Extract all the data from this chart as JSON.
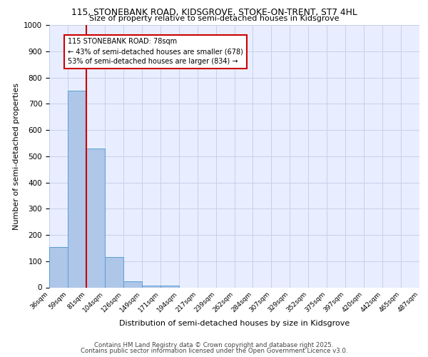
{
  "title1": "115, STONEBANK ROAD, KIDSGROVE, STOKE-ON-TRENT, ST7 4HL",
  "title2": "Size of property relative to semi-detached houses in Kidsgrove",
  "xlabel": "Distribution of semi-detached houses by size in Kidsgrove",
  "ylabel": "Number of semi-detached properties",
  "bins": [
    "36sqm",
    "59sqm",
    "81sqm",
    "104sqm",
    "126sqm",
    "149sqm",
    "171sqm",
    "194sqm",
    "217sqm",
    "239sqm",
    "262sqm",
    "284sqm",
    "307sqm",
    "329sqm",
    "352sqm",
    "375sqm",
    "397sqm",
    "420sqm",
    "442sqm",
    "465sqm",
    "487sqm"
  ],
  "values": [
    155,
    750,
    530,
    115,
    22,
    8,
    6,
    0,
    0,
    0,
    0,
    0,
    0,
    0,
    0,
    0,
    0,
    0,
    0,
    0
  ],
  "bar_color": "#aec6e8",
  "bar_edge_color": "#5a9fd4",
  "vline_color": "#cc0000",
  "vline_position": 1.5,
  "ylim": [
    0,
    1000
  ],
  "yticks": [
    0,
    100,
    200,
    300,
    400,
    500,
    600,
    700,
    800,
    900,
    1000
  ],
  "annotation_title": "115 STONEBANK ROAD: 78sqm",
  "annotation_line1": "← 43% of semi-detached houses are smaller (678)",
  "annotation_line2": "53% of semi-detached houses are larger (834) →",
  "annotation_box_color": "#ffffff",
  "annotation_box_edge": "#cc0000",
  "footer1": "Contains HM Land Registry data © Crown copyright and database right 2025.",
  "footer2": "Contains public sector information licensed under the Open Government Licence v3.0.",
  "plot_bg_color": "#e8eeff"
}
